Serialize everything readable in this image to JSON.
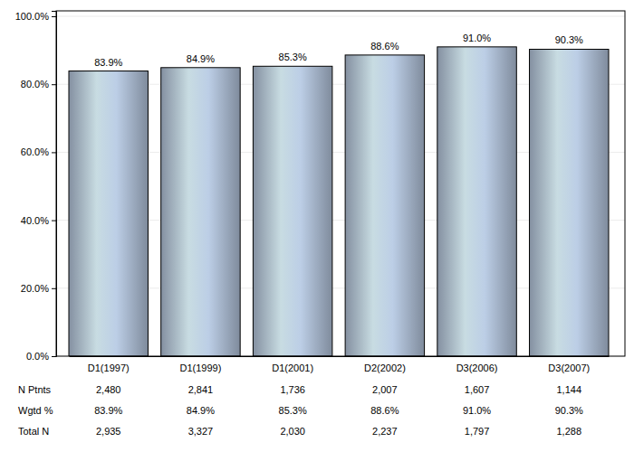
{
  "chart_data": {
    "type": "bar",
    "categories": [
      "D1(1997)",
      "D1(1999)",
      "D1(2001)",
      "D2(2002)",
      "D3(2006)",
      "D3(2007)"
    ],
    "values": [
      83.9,
      84.9,
      85.3,
      88.6,
      91.0,
      90.3
    ],
    "value_labels": [
      "83.9%",
      "84.9%",
      "85.3%",
      "88.6%",
      "91.0%",
      "90.3%"
    ],
    "data_labels": true,
    "color": "#a9b9cf",
    "ylim": [
      0,
      101.6
    ],
    "yticks": [
      {
        "value": 0,
        "label": "0.0%"
      },
      {
        "value": 20,
        "label": "20.0%"
      },
      {
        "value": 40,
        "label": "40.0%"
      },
      {
        "value": 60,
        "label": "60.0%"
      },
      {
        "value": 80,
        "label": "80.0%"
      },
      {
        "value": 100,
        "label": "100.0%"
      }
    ],
    "grid": true,
    "table": {
      "rows": [
        {
          "label": "N Ptnts",
          "values": [
            2480,
            2841,
            1736,
            2007,
            1607,
            1144
          ],
          "value_labels": [
            "2,480",
            "2,841",
            "1,736",
            "2,007",
            "1,607",
            "1,144"
          ]
        },
        {
          "label": "Wgtd %",
          "values": [
            83.9,
            84.9,
            85.3,
            88.6,
            91.0,
            90.3
          ],
          "value_labels": [
            "83.9%",
            "84.9%",
            "85.3%",
            "88.6%",
            "91.0%",
            "90.3%"
          ]
        },
        {
          "label": "Total N",
          "values": [
            2935,
            3327,
            2030,
            2237,
            1797,
            1288
          ],
          "value_labels": [
            "2,935",
            "3,327",
            "2,030",
            "2,237",
            "1,797",
            "1,288"
          ]
        }
      ]
    }
  }
}
